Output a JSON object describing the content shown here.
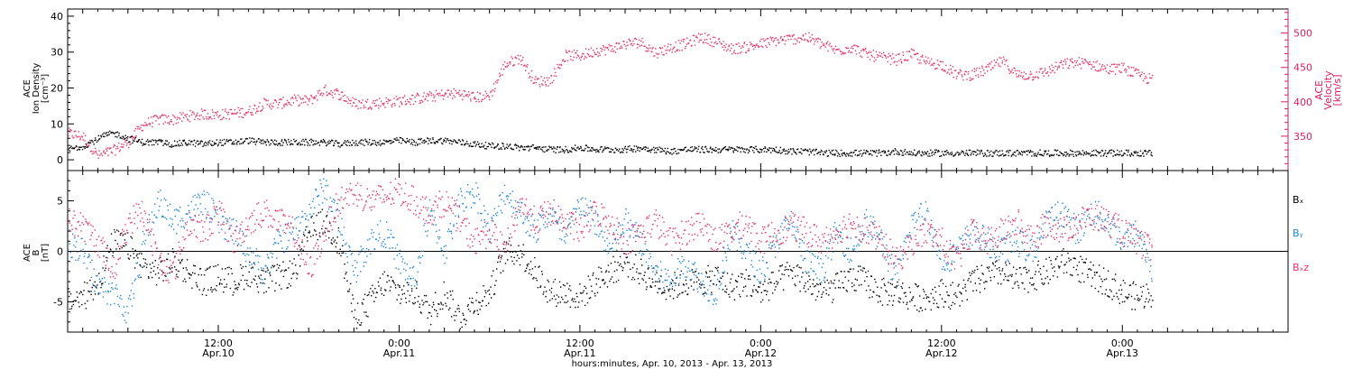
{
  "chart_data": [
    {
      "type": "scatter",
      "panel": "ion-density-velocity",
      "ylabel": [
        "ACE",
        "Ion Density",
        "[cm⁻³]"
      ],
      "ylim": [
        -3,
        42
      ],
      "yticks": [
        0,
        10,
        20,
        30,
        40
      ],
      "y2label": [
        "ACE",
        "Velocity",
        "[km/s]"
      ],
      "y2lim": [
        300,
        535
      ],
      "y2ticks": [
        350,
        400,
        450,
        500
      ],
      "series": [
        {
          "name": "",
          "axis": "left",
          "color": "#000000",
          "x": [
            0,
            0.5,
            1,
            1.5,
            2,
            2.5,
            3,
            3.5,
            4,
            5,
            6,
            7,
            8,
            9,
            10,
            11,
            12,
            13,
            14,
            15,
            16,
            17,
            18,
            19,
            20,
            21,
            22,
            23,
            24,
            25,
            26,
            27,
            28,
            29,
            30,
            31,
            32,
            33,
            34,
            35,
            36,
            37,
            38,
            39,
            40,
            41,
            42,
            43,
            44,
            45,
            46,
            47,
            48,
            49,
            50,
            51,
            52,
            53,
            54,
            55,
            56,
            57,
            58,
            59,
            60,
            61,
            62,
            63,
            64,
            65,
            66,
            67,
            68,
            69,
            70,
            71,
            72
          ],
          "values": [
            3,
            3.5,
            4,
            5,
            6,
            7,
            7.5,
            7,
            6,
            5,
            5,
            4.5,
            5,
            4.5,
            5,
            5,
            5.5,
            5,
            5,
            5,
            5,
            5,
            4.5,
            5,
            5,
            5,
            5.5,
            5,
            5.5,
            5.5,
            5,
            4.5,
            4,
            4,
            3.5,
            3.5,
            3,
            3,
            3.5,
            3,
            3,
            3,
            3.5,
            3,
            2.5,
            3,
            3,
            3,
            3,
            3,
            3,
            3,
            2.5,
            2.5,
            2,
            2,
            2,
            2,
            2,
            2.5,
            2,
            2,
            2,
            2,
            2,
            2,
            2,
            2,
            2,
            2,
            2,
            2,
            2,
            2,
            2,
            2,
            2
          ]
        },
        {
          "name": "",
          "axis": "right",
          "color": "#e8336a",
          "x": [
            0,
            1,
            2,
            3,
            4,
            5,
            6,
            7,
            8,
            9,
            10,
            11,
            12,
            13,
            14,
            15,
            16,
            17,
            18,
            19,
            20,
            21,
            22,
            23,
            24,
            25,
            26,
            27,
            28,
            29,
            30,
            31,
            32,
            33,
            34,
            35,
            36,
            37,
            38,
            39,
            40,
            41,
            42,
            43,
            44,
            45,
            46,
            47,
            48,
            49,
            50,
            51,
            52,
            53,
            54,
            55,
            56,
            57,
            58,
            59,
            60,
            61,
            62,
            63,
            64,
            65,
            66,
            67,
            68,
            69,
            70,
            71,
            72
          ],
          "values": [
            355,
            350,
            322,
            330,
            342,
            368,
            375,
            375,
            380,
            383,
            382,
            384,
            387,
            398,
            398,
            403,
            402,
            418,
            412,
            398,
            398,
            400,
            402,
            405,
            408,
            412,
            413,
            407,
            410,
            455,
            465,
            430,
            432,
            468,
            468,
            475,
            478,
            485,
            488,
            472,
            480,
            485,
            495,
            488,
            478,
            480,
            485,
            490,
            492,
            495,
            485,
            475,
            480,
            470,
            465,
            462,
            470,
            458,
            455,
            440,
            440,
            448,
            460,
            440,
            440,
            445,
            455,
            458,
            455,
            448,
            450,
            440,
            432
          ]
        }
      ]
    },
    {
      "type": "scatter",
      "panel": "magnetic-field",
      "ylabel": [
        "ACE",
        "B",
        "[nT]"
      ],
      "ylim": [
        -8,
        8
      ],
      "yticks": [
        -5,
        0,
        5
      ],
      "zero_line": true,
      "legend_position": "right",
      "series": [
        {
          "name": "Bₓ",
          "color": "#000000",
          "x": [
            0,
            1,
            2,
            3,
            4,
            5,
            6,
            7,
            8,
            9,
            10,
            11,
            12,
            13,
            14,
            15,
            16,
            17,
            18,
            19,
            20,
            21,
            22,
            23,
            24,
            25,
            26,
            27,
            28,
            29,
            30,
            31,
            32,
            33,
            34,
            35,
            36,
            37,
            38,
            39,
            40,
            41,
            42,
            43,
            44,
            45,
            46,
            47,
            48,
            49,
            50,
            51,
            52,
            53,
            54,
            55,
            56,
            57,
            58,
            59,
            60,
            61,
            62,
            63,
            64,
            65,
            66,
            67,
            68,
            69,
            70,
            71,
            72
          ],
          "values": [
            -5,
            -4.5,
            -3,
            1,
            0.5,
            -1.5,
            -2,
            -1,
            -2,
            -3,
            -2.5,
            -3,
            -2,
            -3,
            -2.5,
            -2,
            2,
            3,
            1,
            -6.5,
            -5,
            -3,
            -4,
            -4,
            -6,
            -4,
            -6.5,
            -5,
            -4,
            0,
            0,
            -2,
            -4,
            -4,
            -4.5,
            -3,
            -2,
            -1,
            -2,
            -3,
            -3.5,
            -3,
            -3,
            -2.5,
            -3.5,
            -3,
            -4,
            -3,
            -2,
            -3,
            -4,
            -3.5,
            -2.5,
            -3,
            -4,
            -4,
            -4.5,
            -4.5,
            -4,
            -4.5,
            -3,
            -2.5,
            -2,
            -3,
            -2.5,
            -2,
            -1,
            -1.5,
            -2.5,
            -3,
            -4,
            -4.5,
            -4
          ]
        },
        {
          "name": "Bᵧ",
          "color": "#1f86d6",
          "x": [
            0,
            1,
            2,
            3,
            4,
            5,
            6,
            7,
            8,
            9,
            10,
            11,
            12,
            13,
            14,
            15,
            16,
            17,
            18,
            19,
            20,
            21,
            22,
            23,
            24,
            25,
            26,
            27,
            28,
            29,
            30,
            31,
            32,
            33,
            34,
            35,
            36,
            37,
            38,
            39,
            40,
            41,
            42,
            43,
            44,
            45,
            46,
            47,
            48,
            49,
            50,
            51,
            52,
            53,
            54,
            55,
            56,
            57,
            58,
            59,
            60,
            61,
            62,
            63,
            64,
            65,
            66,
            67,
            68,
            69,
            70,
            71,
            72
          ],
          "values": [
            1,
            0,
            -3.5,
            -4,
            -6,
            1,
            5,
            3,
            4,
            5,
            3,
            2,
            0,
            -2,
            1,
            2,
            4,
            6.5,
            3,
            -2,
            1,
            2,
            -1,
            -3,
            4,
            0,
            5,
            6,
            2,
            6,
            4,
            2,
            4,
            1,
            5,
            3,
            0,
            3,
            1,
            -2,
            -3,
            -1,
            -3,
            -4,
            2,
            0,
            -2,
            1,
            3,
            -1,
            -2,
            2,
            0,
            3,
            1,
            -3,
            3,
            4,
            -1,
            0,
            2,
            1,
            0,
            1,
            0,
            3,
            4,
            2,
            4,
            3,
            1,
            2,
            -2
          ]
        },
        {
          "name": "Bₓz",
          "color": "#e8336a",
          "x": [
            0,
            1,
            2,
            3,
            4,
            5,
            6,
            7,
            8,
            9,
            10,
            11,
            12,
            13,
            14,
            15,
            16,
            17,
            18,
            19,
            20,
            21,
            22,
            23,
            24,
            25,
            26,
            27,
            28,
            29,
            30,
            31,
            32,
            33,
            34,
            35,
            36,
            37,
            38,
            39,
            40,
            41,
            42,
            43,
            44,
            45,
            46,
            47,
            48,
            49,
            50,
            51,
            52,
            53,
            54,
            55,
            56,
            57,
            58,
            59,
            60,
            61,
            62,
            63,
            64,
            65,
            66,
            67,
            68,
            69,
            70,
            71,
            72
          ],
          "values": [
            3,
            2.5,
            1,
            -2,
            3,
            4,
            -1,
            -2,
            3,
            2,
            4,
            1,
            3,
            4,
            3,
            2,
            -2,
            2,
            5,
            6,
            5,
            5.5,
            6,
            5,
            4,
            5,
            3,
            1,
            2,
            0,
            5,
            3,
            4,
            3,
            2,
            4,
            3,
            1,
            2,
            3,
            1,
            2,
            3,
            1,
            2,
            3,
            1,
            2,
            2.5,
            2,
            1,
            2,
            3,
            2,
            1,
            -1,
            1,
            2,
            1,
            -1,
            2,
            1,
            2,
            3,
            1,
            3,
            2,
            3,
            3.5,
            3,
            2,
            1,
            0
          ]
        }
      ],
      "legend": [
        "Bₓ",
        "Bᵧ",
        "Bₓz"
      ]
    }
  ],
  "x_axis": {
    "ticks": [
      {
        "hour": 12,
        "line1": "12:00",
        "line2": "Apr.10"
      },
      {
        "hour": 24,
        "line1": "0:00",
        "line2": "Apr.11"
      },
      {
        "hour": 36,
        "line1": "12:00",
        "line2": "Apr.11"
      },
      {
        "hour": 48,
        "line1": "0:00",
        "line2": "Apr.12"
      },
      {
        "hour": 60,
        "line1": "12:00",
        "line2": "Apr.12"
      },
      {
        "hour": 72,
        "line1": "0:00",
        "line2": "Apr.13"
      }
    ],
    "xlim": [
      2,
      83
    ],
    "label": "hours:minutes, Apr. 10, 2013 - Apr. 13, 2013"
  }
}
